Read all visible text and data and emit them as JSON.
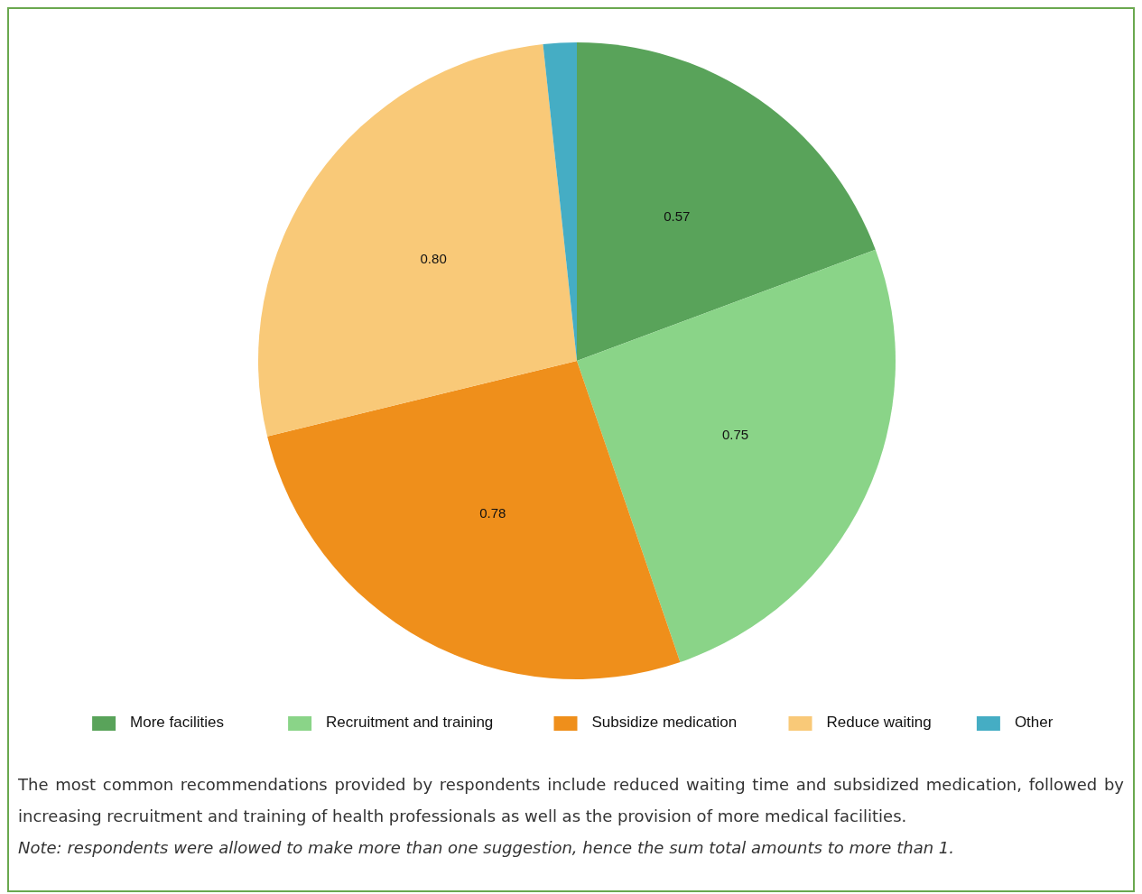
{
  "chart_data": {
    "type": "pie",
    "categories": [
      "More facilities",
      "Recruitment and training",
      "Subsidize medication",
      "Reduce waiting",
      "Other"
    ],
    "values": [
      0.57,
      0.75,
      0.78,
      0.8,
      0.05
    ],
    "colors": [
      "#59a35a",
      "#8ad488",
      "#ef8f1b",
      "#f9c978",
      "#45adc4"
    ],
    "value_labels": [
      "0.57",
      "0.75",
      "0.78",
      "0.80",
      null
    ],
    "legend": "bottom",
    "annotations": [
      "The most common recommendations provided by respondents include reduced waiting time and subsidized medication, followed by increasing recruitment and training of health professionals as well as the provision of more medical facilities.",
      "Note: respondents were allowed to make more than one suggestion, hence the sum total amounts to more than 1."
    ]
  }
}
